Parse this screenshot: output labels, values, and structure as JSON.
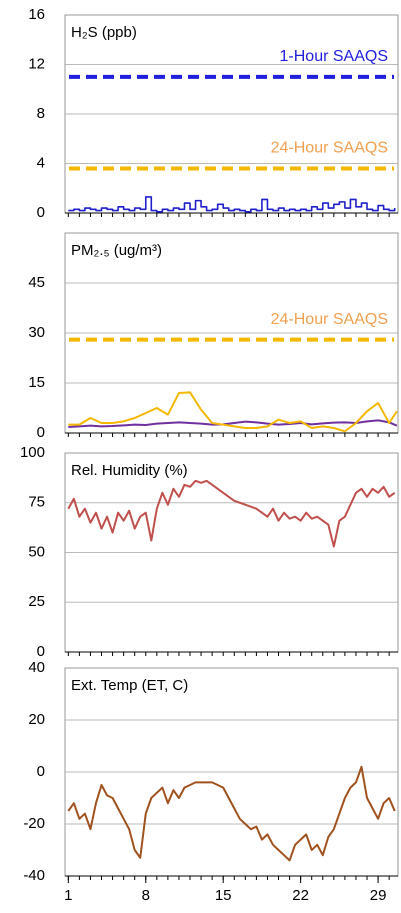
{
  "chart_data": [
    {
      "type": "line",
      "title": "H₂S (ppb)",
      "step": true,
      "xlim": [
        0.7,
        30.8
      ],
      "ylim": [
        0,
        16
      ],
      "yticks": [
        0,
        4,
        8,
        12,
        16
      ],
      "grid": true,
      "x": [
        1,
        1.5,
        2,
        2.5,
        3,
        3.5,
        4,
        4.5,
        5,
        5.5,
        6,
        6.5,
        7,
        7.5,
        8,
        8.5,
        9,
        9.5,
        10,
        10.5,
        11,
        11.5,
        12,
        12.5,
        13,
        13.5,
        14,
        14.5,
        15,
        15.5,
        16,
        16.5,
        17,
        17.5,
        18,
        18.5,
        19,
        19.5,
        20,
        20.5,
        21,
        21.5,
        22,
        22.5,
        23,
        23.5,
        24,
        24.5,
        25,
        25.5,
        26,
        26.5,
        27,
        27.5,
        28,
        28.5,
        29,
        29.5,
        30,
        30.5
      ],
      "series": [
        {
          "color": "#1f1fcc",
          "values": [
            0.2,
            0.3,
            0.2,
            0.4,
            0.3,
            0.2,
            0.4,
            0.3,
            0.2,
            0.5,
            0.3,
            0.2,
            0.4,
            0.3,
            1.3,
            0.2,
            0.1,
            0.3,
            0.2,
            0.4,
            0.3,
            0.8,
            0.3,
            1.0,
            0.5,
            0.2,
            0.3,
            0.7,
            0.4,
            0.2,
            0.3,
            0.2,
            0.1,
            0.3,
            0.2,
            1.1,
            0.3,
            0.2,
            0.4,
            0.2,
            0.3,
            0.2,
            0.3,
            0.2,
            0.5,
            0.3,
            0.8,
            0.4,
            0.7,
            0.9,
            0.4,
            1.1,
            0.5,
            0.8,
            0.3,
            0.2,
            0.6,
            0.3,
            0.2,
            0.4
          ]
        }
      ],
      "reference_lines": [
        {
          "label": "1-Hour SAAQS",
          "value": 11,
          "color": "#1f1fdd"
        },
        {
          "label": "24-Hour SAAQS",
          "value": 3.6,
          "color": "#f5b800",
          "label_color": "#f0a050"
        }
      ]
    },
    {
      "type": "line",
      "title": "PM₂.₅ (ug/m³)",
      "xlim": [
        0.7,
        30.8
      ],
      "ylim": [
        0,
        60
      ],
      "yticks": [
        0,
        15,
        30,
        45
      ],
      "grid": true,
      "x": [
        1,
        2,
        3,
        4,
        5,
        6,
        7,
        8,
        9,
        10,
        11,
        12,
        13,
        14,
        15,
        16,
        17,
        18,
        19,
        20,
        21,
        22,
        23,
        24,
        25,
        26,
        27,
        28,
        29,
        30,
        30.7
      ],
      "series": [
        {
          "color": "#7030a0",
          "values": [
            1.8,
            2,
            2.2,
            2,
            2.1,
            2.3,
            2.5,
            2.4,
            2.8,
            3,
            3.2,
            3,
            2.8,
            2.5,
            2.6,
            3,
            3.4,
            3.2,
            2.8,
            2.5,
            2.7,
            3,
            2.6,
            2.9,
            3.1,
            3.2,
            3,
            3.5,
            3.8,
            3.2,
            2.2
          ]
        },
        {
          "color": "#f5b800",
          "values": [
            2.5,
            2.5,
            4.5,
            3,
            3,
            3.5,
            4.5,
            6,
            7.5,
            5.5,
            12,
            12.2,
            7,
            3,
            2.5,
            2,
            1.5,
            1.5,
            2,
            4,
            3,
            3.5,
            1.5,
            2,
            1.5,
            0.5,
            3,
            6.5,
            9,
            3,
            6.5
          ]
        }
      ],
      "reference_lines": [
        {
          "label": "24-Hour SAAQS",
          "value": 28,
          "color": "#f5b800",
          "label_color": "#f0a050"
        }
      ]
    },
    {
      "type": "line",
      "title": "Rel. Humidity (%)",
      "xlim": [
        0.7,
        30.8
      ],
      "ylim": [
        0,
        100
      ],
      "yticks": [
        0,
        25,
        50,
        75,
        100
      ],
      "grid": true,
      "x": [
        1,
        1.5,
        2,
        2.5,
        3,
        3.5,
        4,
        4.5,
        5,
        5.5,
        6,
        6.5,
        7,
        7.5,
        8,
        8.5,
        9,
        9.5,
        10,
        10.5,
        11,
        11.5,
        12,
        12.5,
        13,
        13.5,
        14,
        14.5,
        15,
        15.5,
        16,
        16.5,
        17,
        17.5,
        18,
        18.5,
        19,
        19.5,
        20,
        20.5,
        21,
        21.5,
        22,
        22.5,
        23,
        23.5,
        24,
        24.5,
        25,
        25.5,
        26,
        26.5,
        27,
        27.5,
        28,
        28.5,
        29,
        29.5,
        30,
        30.5
      ],
      "series": [
        {
          "color": "#c0504d",
          "values": [
            72,
            77,
            68,
            72,
            65,
            70,
            62,
            68,
            60,
            70,
            66,
            71,
            62,
            68,
            70,
            56,
            72,
            80,
            74,
            82,
            78,
            84,
            83,
            86,
            85,
            86,
            84,
            82,
            80,
            78,
            76,
            75,
            74,
            73,
            72,
            70,
            68,
            72,
            66,
            70,
            67,
            68,
            66,
            70,
            67,
            68,
            66,
            64,
            53,
            66,
            68,
            74,
            80,
            82,
            78,
            82,
            80,
            83,
            78,
            80
          ]
        }
      ]
    },
    {
      "type": "line",
      "title": "Ext. Temp (ET, C)",
      "xlim": [
        0.7,
        30.8
      ],
      "xticks": [
        1,
        8,
        15,
        22,
        29
      ],
      "ylim": [
        -40,
        40
      ],
      "yticks": [
        -40,
        -20,
        0,
        20,
        40
      ],
      "grid": true,
      "x": [
        1,
        1.5,
        2,
        2.5,
        3,
        3.5,
        4,
        4.5,
        5,
        5.5,
        6,
        6.5,
        7,
        7.5,
        8,
        8.5,
        9,
        9.5,
        10,
        10.5,
        11,
        11.5,
        12,
        12.5,
        13,
        13.5,
        14,
        14.5,
        15,
        15.5,
        16,
        16.5,
        17,
        17.5,
        18,
        18.5,
        19,
        19.5,
        20,
        20.5,
        21,
        21.5,
        22,
        22.5,
        23,
        23.5,
        24,
        24.5,
        25,
        25.5,
        26,
        26.5,
        27,
        27.5,
        28,
        28.5,
        29,
        29.5,
        30,
        30.5
      ],
      "series": [
        {
          "color": "#a0521e",
          "values": [
            -15,
            -12,
            -18,
            -16,
            -22,
            -12,
            -5,
            -9,
            -10,
            -14,
            -18,
            -22,
            -30,
            -33,
            -16,
            -10,
            -8,
            -6,
            -12,
            -7,
            -10,
            -6,
            -5,
            -4,
            -4,
            -4,
            -4,
            -5,
            -6,
            -10,
            -14,
            -18,
            -20,
            -22,
            -21,
            -26,
            -24,
            -28,
            -30,
            -32,
            -34,
            -28,
            -26,
            -24,
            -30,
            -28,
            -32,
            -25,
            -22,
            -16,
            -10,
            -6,
            -4,
            2,
            -10,
            -14,
            -18,
            -12,
            -10,
            -15
          ]
        }
      ]
    }
  ]
}
